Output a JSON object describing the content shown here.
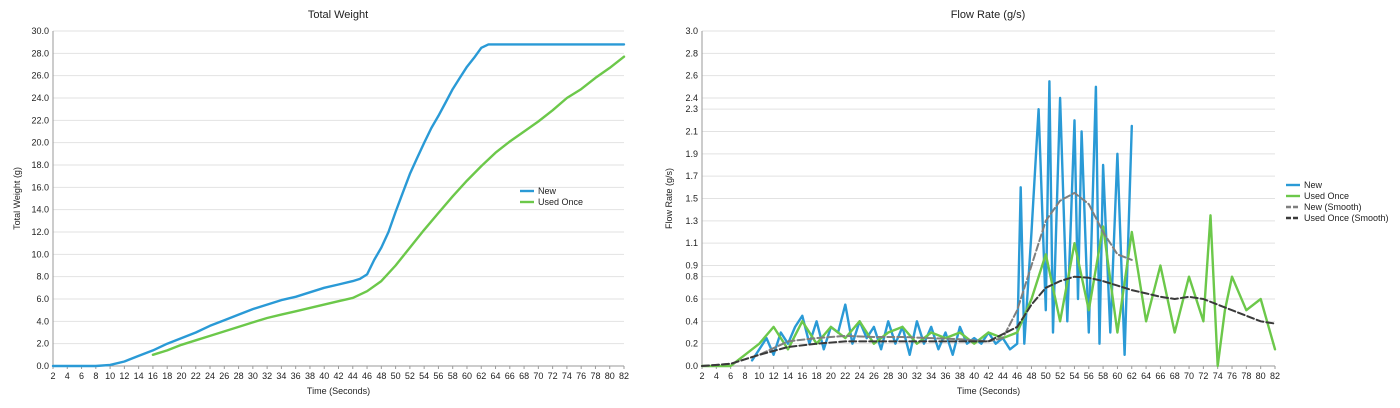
{
  "chart_data": [
    {
      "type": "line",
      "title": "Total Weight",
      "xlabel": "Time (Seconds)",
      "ylabel": "Total Weight (g)",
      "xlim": [
        2,
        82
      ],
      "ylim": [
        0,
        30
      ],
      "grid": true,
      "legend_position": "right",
      "x_ticks": [
        "2",
        "4",
        "6",
        "8",
        "10",
        "12",
        "14",
        "16",
        "18",
        "20",
        "22",
        "24",
        "26",
        "28",
        "30",
        "32",
        "34",
        "36",
        "38",
        "40",
        "42",
        "44",
        "46",
        "48",
        "50",
        "52",
        "54",
        "56",
        "58",
        "60",
        "62",
        "64",
        "66",
        "68",
        "70",
        "72",
        "74",
        "76",
        "78",
        "80",
        "82"
      ],
      "y_ticks": [
        "0.0",
        "2.0",
        "4.0",
        "6.0",
        "8.0",
        "10.0",
        "12.0",
        "14.0",
        "16.0",
        "18.0",
        "20.0",
        "22.0",
        "24.0",
        "26.0",
        "28.0",
        "30.0"
      ],
      "series": [
        {
          "name": "New",
          "color": "#2a9ad6",
          "x": [
            2,
            4,
            6,
            8,
            10,
            12,
            14,
            16,
            18,
            20,
            22,
            24,
            26,
            28,
            30,
            32,
            34,
            36,
            38,
            40,
            42,
            44,
            45,
            46,
            47,
            48,
            49,
            50,
            51,
            52,
            53,
            54,
            55,
            56,
            57,
            58,
            59,
            60,
            61,
            62,
            63,
            64,
            66,
            68,
            70,
            72,
            74,
            76,
            78,
            80,
            82
          ],
          "y": [
            0,
            0,
            0,
            0,
            0.1,
            0.4,
            0.9,
            1.4,
            2.0,
            2.5,
            3.0,
            3.6,
            4.1,
            4.6,
            5.1,
            5.5,
            5.9,
            6.2,
            6.6,
            7.0,
            7.3,
            7.6,
            7.8,
            8.2,
            9.5,
            10.6,
            12.0,
            13.8,
            15.5,
            17.2,
            18.6,
            20.0,
            21.3,
            22.4,
            23.6,
            24.8,
            25.8,
            26.8,
            27.6,
            28.5,
            28.8,
            28.8,
            28.8,
            28.8,
            28.8,
            28.8,
            28.8,
            28.8,
            28.8,
            28.8,
            28.8
          ]
        },
        {
          "name": "Used Once",
          "color": "#6cc84a",
          "x": [
            16,
            18,
            20,
            22,
            24,
            26,
            28,
            30,
            32,
            34,
            36,
            38,
            40,
            42,
            44,
            46,
            48,
            50,
            52,
            54,
            56,
            58,
            60,
            62,
            64,
            66,
            68,
            70,
            72,
            74,
            76,
            78,
            80,
            82
          ],
          "y": [
            1.0,
            1.4,
            1.9,
            2.3,
            2.7,
            3.1,
            3.5,
            3.9,
            4.3,
            4.6,
            4.9,
            5.2,
            5.5,
            5.8,
            6.1,
            6.7,
            7.6,
            9.0,
            10.6,
            12.2,
            13.7,
            15.2,
            16.6,
            17.9,
            19.1,
            20.1,
            21.0,
            21.9,
            22.9,
            24.0,
            24.8,
            25.8,
            26.7,
            27.7
          ]
        }
      ]
    },
    {
      "type": "line",
      "title": "Flow Rate (g/s)",
      "xlabel": "Time (Seconds)",
      "ylabel": "Flow Rate (g/s)",
      "xlim": [
        2,
        82
      ],
      "ylim": [
        0,
        3.0
      ],
      "grid": true,
      "legend_position": "right",
      "x_ticks": [
        "2",
        "4",
        "6",
        "8",
        "10",
        "12",
        "14",
        "16",
        "18",
        "20",
        "22",
        "24",
        "26",
        "28",
        "30",
        "32",
        "34",
        "36",
        "38",
        "40",
        "42",
        "44",
        "46",
        "48",
        "50",
        "52",
        "54",
        "56",
        "58",
        "60",
        "62",
        "64",
        "66",
        "68",
        "70",
        "72",
        "74",
        "76",
        "78",
        "80",
        "82"
      ],
      "y_ticks": [
        "0.0",
        "0.2",
        "0.4",
        "0.6",
        "0.8",
        "0.9",
        "1.1",
        "1.3",
        "1.5",
        "1.7",
        "1.9",
        "2.1",
        "2.3",
        "2.4",
        "2.6",
        "2.8",
        "3.0"
      ],
      "series": [
        {
          "name": "New",
          "color": "#2a9ad6",
          "x": [
            9,
            10,
            11,
            12,
            13,
            14,
            15,
            16,
            17,
            18,
            19,
            20,
            21,
            22,
            23,
            24,
            25,
            26,
            27,
            28,
            29,
            30,
            31,
            32,
            33,
            34,
            35,
            36,
            37,
            38,
            39,
            40,
            41,
            42,
            43,
            44,
            45,
            46,
            46.5,
            47,
            48,
            49,
            50,
            50.5,
            51,
            52,
            53,
            54,
            54.5,
            55,
            56,
            57,
            57.5,
            58,
            59,
            60,
            61,
            62
          ],
          "y": [
            0.05,
            0.15,
            0.25,
            0.1,
            0.3,
            0.2,
            0.35,
            0.45,
            0.2,
            0.4,
            0.15,
            0.35,
            0.3,
            0.55,
            0.2,
            0.4,
            0.25,
            0.35,
            0.15,
            0.4,
            0.2,
            0.35,
            0.1,
            0.4,
            0.2,
            0.35,
            0.15,
            0.3,
            0.1,
            0.35,
            0.2,
            0.25,
            0.2,
            0.3,
            0.2,
            0.25,
            0.15,
            0.2,
            1.6,
            0.2,
            1.2,
            2.3,
            0.5,
            2.55,
            0.3,
            2.4,
            0.4,
            2.2,
            0.6,
            2.1,
            0.3,
            2.5,
            0.2,
            1.8,
            0.3,
            1.9,
            0.1,
            2.15
          ]
        },
        {
          "name": "Used Once",
          "color": "#6cc84a",
          "x": [
            2,
            4,
            6,
            8,
            10,
            12,
            14,
            16,
            18,
            20,
            22,
            24,
            26,
            28,
            30,
            32,
            34,
            36,
            38,
            40,
            42,
            44,
            46,
            48,
            50,
            52,
            54,
            56,
            58,
            60,
            62,
            64,
            66,
            68,
            70,
            72,
            73,
            74,
            75,
            76,
            78,
            80,
            82
          ],
          "y": [
            0,
            0,
            0,
            0.1,
            0.2,
            0.35,
            0.15,
            0.4,
            0.2,
            0.35,
            0.25,
            0.4,
            0.2,
            0.3,
            0.35,
            0.2,
            0.3,
            0.25,
            0.3,
            0.2,
            0.3,
            0.25,
            0.3,
            0.6,
            1.0,
            0.4,
            1.1,
            0.5,
            1.25,
            0.3,
            1.2,
            0.4,
            0.9,
            0.3,
            0.8,
            0.4,
            1.35,
            0.0,
            0.5,
            0.8,
            0.5,
            0.6,
            0.15
          ]
        },
        {
          "name": "New (Smooth)",
          "color": "#7f7f7f",
          "x": [
            2,
            6,
            10,
            14,
            18,
            22,
            26,
            30,
            34,
            38,
            42,
            44,
            46,
            48,
            50,
            52,
            54,
            56,
            58,
            60,
            62
          ],
          "y": [
            0,
            0.02,
            0.1,
            0.22,
            0.25,
            0.27,
            0.26,
            0.26,
            0.25,
            0.24,
            0.22,
            0.25,
            0.5,
            0.9,
            1.3,
            1.48,
            1.55,
            1.45,
            1.2,
            1.0,
            0.95
          ]
        },
        {
          "name": "Used Once (Smooth)",
          "color": "#3a3a3a",
          "x": [
            2,
            6,
            10,
            14,
            18,
            22,
            26,
            30,
            34,
            38,
            42,
            46,
            48,
            50,
            52,
            54,
            56,
            58,
            60,
            62,
            64,
            66,
            68,
            70,
            72,
            74,
            76,
            78,
            80,
            82
          ],
          "y": [
            0,
            0.02,
            0.1,
            0.17,
            0.2,
            0.22,
            0.22,
            0.22,
            0.22,
            0.22,
            0.22,
            0.35,
            0.55,
            0.7,
            0.76,
            0.8,
            0.79,
            0.76,
            0.72,
            0.68,
            0.65,
            0.62,
            0.6,
            0.62,
            0.6,
            0.55,
            0.5,
            0.45,
            0.4,
            0.38
          ]
        }
      ]
    }
  ]
}
